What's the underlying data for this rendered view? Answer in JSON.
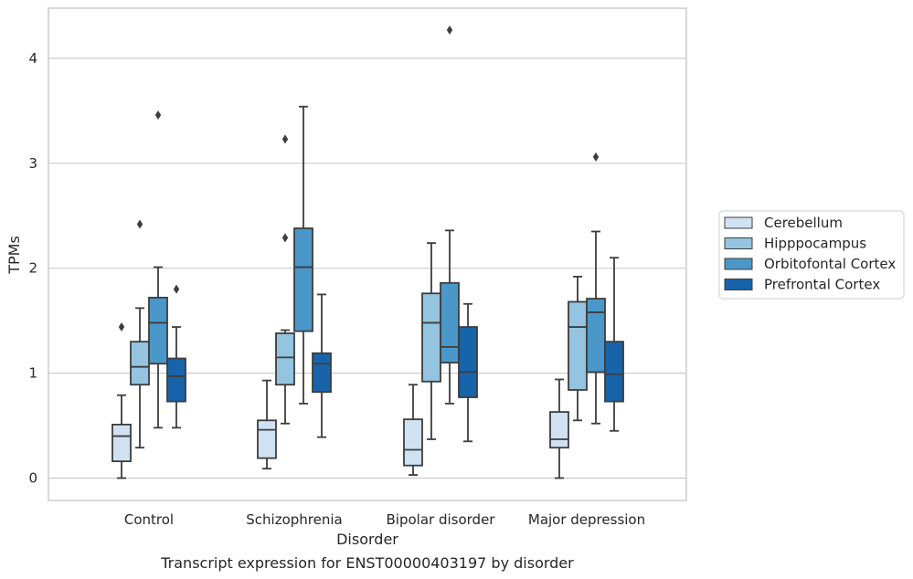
{
  "chart_data": {
    "type": "box",
    "title": "",
    "caption": "Transcript expression for ENST00000403197 by disorder",
    "xlabel": "Disorder",
    "ylabel": "TPMs",
    "ylim": [
      -0.2,
      4.5
    ],
    "yticks": [
      0,
      1,
      2,
      3,
      4
    ],
    "grid": "horizontal",
    "legend_position": "right",
    "categories": [
      "Control",
      "Schizophrenia",
      "Bipolar disorder",
      "Major depression"
    ],
    "colors": {
      "Cerebellum": "#d0e1f2",
      "Hipppocampus": "#94c4df",
      "Orbitofontal Cortex": "#4a98c9",
      "Prefrontal Cortex": "#1764ab"
    },
    "series": [
      {
        "name": "Cerebellum",
        "boxes": [
          {
            "whislo": 0.0,
            "q1": 0.16,
            "med": 0.4,
            "q3": 0.51,
            "whishi": 0.79,
            "fliers": [
              1.44
            ]
          },
          {
            "whislo": 0.09,
            "q1": 0.19,
            "med": 0.46,
            "q3": 0.55,
            "whishi": 0.93,
            "fliers": []
          },
          {
            "whislo": 0.03,
            "q1": 0.12,
            "med": 0.27,
            "q3": 0.56,
            "whishi": 0.89,
            "fliers": []
          },
          {
            "whislo": 0.0,
            "q1": 0.29,
            "med": 0.37,
            "q3": 0.63,
            "whishi": 0.94,
            "fliers": []
          }
        ]
      },
      {
        "name": "Hipppocampus",
        "boxes": [
          {
            "whislo": 0.29,
            "q1": 0.89,
            "med": 1.06,
            "q3": 1.3,
            "whishi": 1.62,
            "fliers": [
              2.42
            ]
          },
          {
            "whislo": 0.52,
            "q1": 0.89,
            "med": 1.15,
            "q3": 1.38,
            "whishi": 1.41,
            "fliers": [
              2.29,
              3.23
            ]
          },
          {
            "whislo": 0.37,
            "q1": 0.92,
            "med": 1.48,
            "q3": 1.76,
            "whishi": 2.24,
            "fliers": []
          },
          {
            "whislo": 0.55,
            "q1": 0.84,
            "med": 1.44,
            "q3": 1.68,
            "whishi": 1.92,
            "fliers": []
          }
        ]
      },
      {
        "name": "Orbitofontal Cortex",
        "boxes": [
          {
            "whislo": 0.48,
            "q1": 1.09,
            "med": 1.48,
            "q3": 1.72,
            "whishi": 2.01,
            "fliers": [
              3.46
            ]
          },
          {
            "whislo": 0.71,
            "q1": 1.4,
            "med": 2.01,
            "q3": 2.38,
            "whishi": 3.54,
            "fliers": []
          },
          {
            "whislo": 0.71,
            "q1": 1.1,
            "med": 1.25,
            "q3": 1.86,
            "whishi": 2.36,
            "fliers": [
              4.27
            ]
          },
          {
            "whislo": 0.52,
            "q1": 1.01,
            "med": 1.58,
            "q3": 1.71,
            "whishi": 2.35,
            "fliers": [
              3.06
            ]
          }
        ]
      },
      {
        "name": "Prefrontal Cortex",
        "boxes": [
          {
            "whislo": 0.48,
            "q1": 0.73,
            "med": 0.97,
            "q3": 1.14,
            "whishi": 1.44,
            "fliers": [
              1.8
            ]
          },
          {
            "whislo": 0.39,
            "q1": 0.82,
            "med": 1.09,
            "q3": 1.19,
            "whishi": 1.75,
            "fliers": []
          },
          {
            "whislo": 0.35,
            "q1": 0.77,
            "med": 1.01,
            "q3": 1.44,
            "whishi": 1.66,
            "fliers": []
          },
          {
            "whislo": 0.45,
            "q1": 0.73,
            "med": 0.99,
            "q3": 1.3,
            "whishi": 2.1,
            "fliers": []
          }
        ]
      }
    ]
  }
}
